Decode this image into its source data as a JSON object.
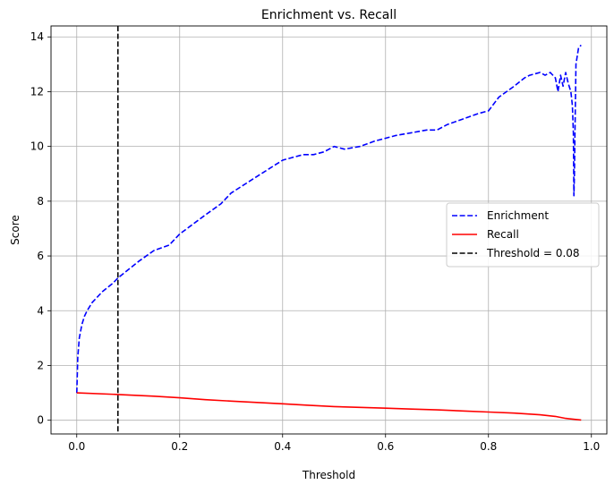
{
  "chart_data": {
    "type": "line",
    "title": "Enrichment vs. Recall",
    "xlabel": "Threshold",
    "ylabel": "Score",
    "xlim": [
      -0.05,
      1.03
    ],
    "ylim": [
      -0.5,
      14.4
    ],
    "xticks": [
      0.0,
      0.2,
      0.4,
      0.6,
      0.8,
      1.0
    ],
    "xtick_labels": [
      "0.0",
      "0.2",
      "0.4",
      "0.6",
      "0.8",
      "1.0"
    ],
    "yticks": [
      0,
      2,
      4,
      6,
      8,
      10,
      12,
      14
    ],
    "ytick_labels": [
      "0",
      "2",
      "4",
      "6",
      "8",
      "10",
      "12",
      "14"
    ],
    "grid": true,
    "legend_position": "center-right",
    "series": [
      {
        "name": "Enrichment",
        "color": "#0000ff",
        "style": "dashed",
        "x": [
          0.0,
          0.002,
          0.005,
          0.01,
          0.015,
          0.02,
          0.03,
          0.05,
          0.07,
          0.08,
          0.1,
          0.12,
          0.15,
          0.18,
          0.2,
          0.25,
          0.28,
          0.3,
          0.35,
          0.4,
          0.42,
          0.44,
          0.46,
          0.48,
          0.5,
          0.52,
          0.55,
          0.58,
          0.6,
          0.62,
          0.65,
          0.68,
          0.7,
          0.72,
          0.75,
          0.78,
          0.8,
          0.82,
          0.85,
          0.87,
          0.88,
          0.9,
          0.91,
          0.92,
          0.93,
          0.935,
          0.94,
          0.945,
          0.95,
          0.955,
          0.96,
          0.963,
          0.965,
          0.966,
          0.967,
          0.968,
          0.97,
          0.975,
          0.98
        ],
        "y": [
          1.0,
          2.3,
          3.0,
          3.5,
          3.8,
          4.0,
          4.3,
          4.7,
          5.0,
          5.2,
          5.5,
          5.8,
          6.2,
          6.4,
          6.8,
          7.5,
          7.9,
          8.3,
          8.9,
          9.5,
          9.6,
          9.7,
          9.7,
          9.8,
          10.0,
          9.9,
          10.0,
          10.2,
          10.3,
          10.4,
          10.5,
          10.6,
          10.6,
          10.8,
          11.0,
          11.2,
          11.3,
          11.8,
          12.2,
          12.5,
          12.6,
          12.7,
          12.6,
          12.7,
          12.5,
          12.0,
          12.6,
          12.2,
          12.7,
          12.3,
          12.0,
          11.5,
          10.5,
          8.2,
          9.0,
          10.3,
          13.0,
          13.6,
          13.7
        ]
      },
      {
        "name": "Recall",
        "color": "#ff0000",
        "style": "solid",
        "x": [
          0.0,
          0.08,
          0.15,
          0.2,
          0.25,
          0.3,
          0.35,
          0.4,
          0.45,
          0.5,
          0.55,
          0.6,
          0.65,
          0.7,
          0.75,
          0.8,
          0.85,
          0.9,
          0.93,
          0.95,
          0.98
        ],
        "y": [
          1.0,
          0.94,
          0.88,
          0.82,
          0.75,
          0.7,
          0.65,
          0.6,
          0.55,
          0.5,
          0.47,
          0.44,
          0.41,
          0.38,
          0.34,
          0.3,
          0.26,
          0.2,
          0.14,
          0.07,
          0.01
        ]
      },
      {
        "name": "Threshold = 0.08",
        "color": "#000000",
        "style": "dashed",
        "vline_x": 0.08
      }
    ]
  }
}
